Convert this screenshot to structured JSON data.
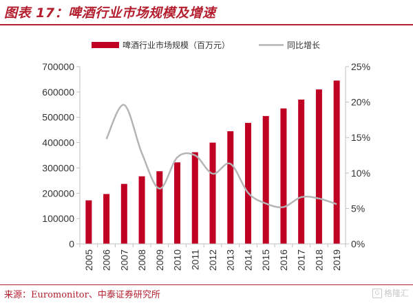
{
  "figure": {
    "title": "图表 17：啤酒行业市场规模及增速",
    "source": "来源：Euromonitor、中泰证券研究所",
    "watermark": "格隆汇",
    "watermark_icon": "g-logo-icon"
  },
  "colors": {
    "bar": "#c00023",
    "line": "#b4b4b4",
    "axis": "#bfbfbf",
    "accent": "#b41e2e"
  },
  "chart_data": {
    "type": "bar",
    "categories": [
      "2005",
      "2006",
      "2007",
      "2008",
      "2009",
      "2010",
      "2011",
      "2012",
      "2013",
      "2014",
      "2015",
      "2016",
      "2017",
      "2018",
      "2019"
    ],
    "series": [
      {
        "name": "啤酒行业市场规模（百万元）",
        "type": "bar",
        "axis": "left",
        "values": [
          172000,
          197000,
          237000,
          267000,
          287000,
          322000,
          362000,
          400000,
          445000,
          478000,
          505000,
          535000,
          570000,
          610000,
          645000
        ]
      },
      {
        "name": "同比增长",
        "type": "line",
        "axis": "right",
        "values": [
          null,
          0.148,
          0.196,
          0.128,
          0.078,
          0.122,
          0.125,
          0.099,
          0.113,
          0.072,
          0.057,
          0.052,
          0.066,
          0.064,
          0.056
        ]
      }
    ],
    "ylim": [
      0,
      700000
    ],
    "yticks": [
      0,
      100000,
      200000,
      300000,
      400000,
      500000,
      600000,
      700000
    ],
    "ylim_right": [
      0,
      0.25
    ],
    "yticks_right": [
      "0%",
      "5%",
      "10%",
      "15%",
      "20%",
      "25%"
    ],
    "legend_position": "top",
    "grid": false
  }
}
